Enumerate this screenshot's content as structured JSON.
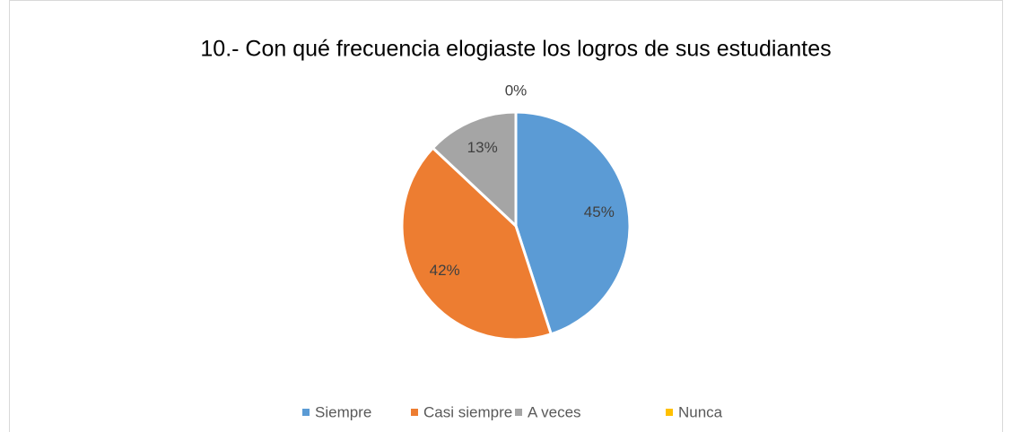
{
  "chart_data": {
    "type": "pie",
    "title": "10.- Con qué frecuencia elogiaste los logros de sus estudiantes",
    "categories": [
      "Siempre",
      "Casi siempre",
      "A veces",
      "Nunca"
    ],
    "values": [
      45,
      42,
      13,
      0
    ],
    "value_labels": [
      "45%",
      "42%",
      "13%",
      "0%"
    ],
    "colors": [
      "#5b9bd5",
      "#ed7d31",
      "#a5a5a5",
      "#ffc000"
    ],
    "legend": "bottom"
  }
}
